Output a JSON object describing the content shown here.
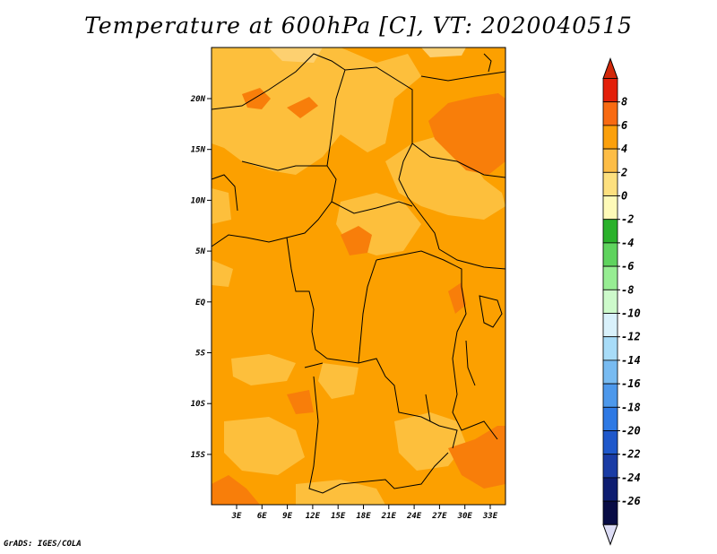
{
  "title": "Temperature at 600hPa [C], VT: 2020040515",
  "credit": "GrADS: IGES/COLA",
  "map": {
    "lat_ticks": [
      "20N",
      "15N",
      "10N",
      "5N",
      "EQ",
      "5S",
      "10S",
      "15S"
    ],
    "lon_ticks": [
      "3E",
      "6E",
      "9E",
      "12E",
      "15E",
      "18E",
      "21E",
      "24E",
      "27E",
      "30E",
      "33E"
    ],
    "colors": {
      "base": "#fca000",
      "light": "#fdbf3c",
      "warm": "#f87e0a",
      "lighter": "#fdd070",
      "border": "#000000"
    }
  },
  "colorbar": {
    "labels": [
      "8",
      "6",
      "4",
      "2",
      "0",
      "-2",
      "-4",
      "-6",
      "-8",
      "-10",
      "-12",
      "-14",
      "-16",
      "-18",
      "-20",
      "-22",
      "-24",
      "-26"
    ],
    "colors": [
      "#e31f0a",
      "#f86a12",
      "#fba00c",
      "#fdbd46",
      "#fde07f",
      "#fefab8",
      "#2ab12b",
      "#5fd35e",
      "#97ed93",
      "#cdfacb",
      "#d9f1fb",
      "#a8dcf8",
      "#78bbf1",
      "#4d98eb",
      "#2e79e4",
      "#1f58cb",
      "#1a3ca5",
      "#0e1d71",
      "#080c45"
    ],
    "top_arrow_color": "#d2280a",
    "bottom_arrow_color": "#dcdcf5"
  }
}
